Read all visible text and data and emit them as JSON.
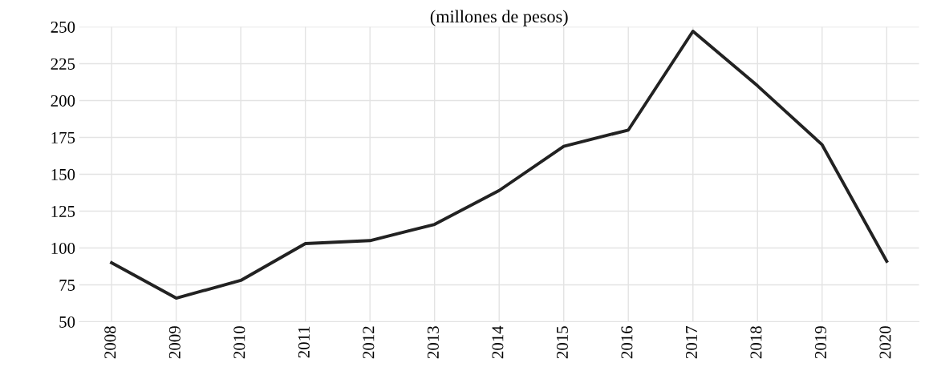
{
  "chart_data": {
    "type": "line",
    "title": "(millones de pesos)",
    "categories": [
      "2008",
      "2009",
      "2010",
      "2011",
      "2012",
      "2013",
      "2014",
      "2015",
      "2016",
      "2017",
      "2018",
      "2019",
      "2020"
    ],
    "series": [
      {
        "color": "#222222",
        "values": [
          90,
          66,
          78,
          103,
          105,
          116,
          139,
          169,
          180,
          247,
          210,
          170,
          91
        ]
      }
    ],
    "ylim": [
      50,
      250
    ],
    "yticks": [
      50,
      75,
      100,
      125,
      150,
      175,
      200,
      225,
      250
    ],
    "grid": true,
    "marker": "none",
    "line_style": "solid"
  }
}
